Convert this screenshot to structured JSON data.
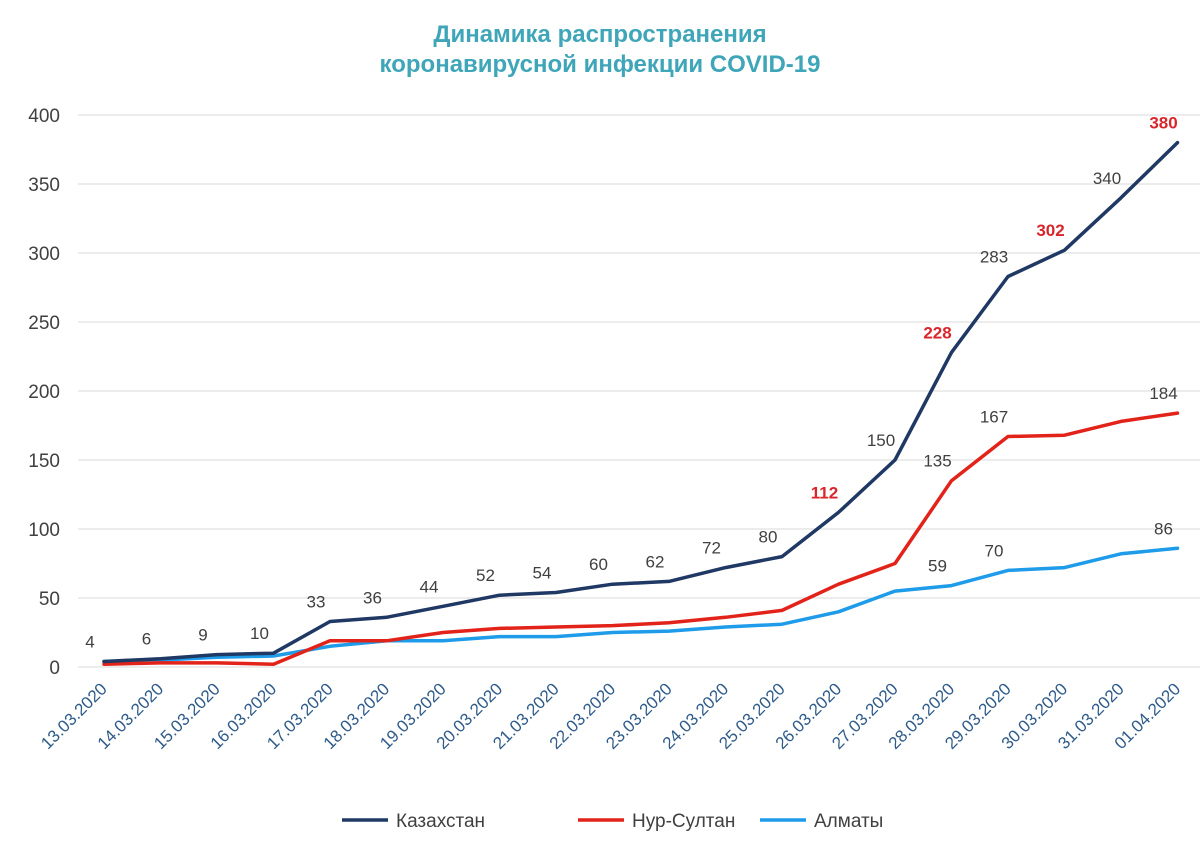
{
  "chart_data": {
    "type": "line",
    "title_line1": "Динамика распространения",
    "title_line2": "коронавирусной инфекции COVID-19",
    "xlabel": "",
    "ylabel": "",
    "ylim": [
      0,
      400
    ],
    "yticks": [
      "0",
      "50",
      "100",
      "150",
      "200",
      "250",
      "300",
      "350",
      "400"
    ],
    "grid": true,
    "legend_position": "bottom",
    "categories": [
      "13.03.2020",
      "14.03.2020",
      "15.03.2020",
      "16.03.2020",
      "17.03.2020",
      "18.03.2020",
      "19.03.2020",
      "20.03.2020",
      "21.03.2020",
      "22.03.2020",
      "23.03.2020",
      "24.03.2020",
      "25.03.2020",
      "26.03.2020",
      "27.03.2020",
      "28.03.2020",
      "29.03.2020",
      "30.03.2020",
      "31.03.2020",
      "01.04.2020"
    ],
    "series": [
      {
        "name": "Казахстан",
        "color": "#1f3864",
        "values": [
          4,
          6,
          9,
          10,
          33,
          36,
          44,
          52,
          54,
          60,
          62,
          72,
          80,
          112,
          150,
          228,
          283,
          302,
          340,
          380
        ]
      },
      {
        "name": "Нур-Султан",
        "color": "#e2231a",
        "values": [
          2,
          3,
          3,
          2,
          19,
          19,
          25,
          28,
          29,
          30,
          32,
          36,
          41,
          60,
          75,
          135,
          167,
          168,
          178,
          184
        ]
      },
      {
        "name": "Алматы",
        "color": "#1e9be9",
        "values": [
          4,
          5,
          7,
          8,
          15,
          19,
          19,
          22,
          22,
          25,
          26,
          29,
          31,
          40,
          55,
          59,
          70,
          72,
          82,
          86
        ]
      }
    ],
    "data_labels": [
      {
        "series": 0,
        "index": 0,
        "text": "4",
        "highlight": false
      },
      {
        "series": 0,
        "index": 1,
        "text": "6",
        "highlight": false
      },
      {
        "series": 0,
        "index": 2,
        "text": "9",
        "highlight": false
      },
      {
        "series": 0,
        "index": 3,
        "text": "10",
        "highlight": false
      },
      {
        "series": 0,
        "index": 4,
        "text": "33",
        "highlight": false
      },
      {
        "series": 0,
        "index": 5,
        "text": "36",
        "highlight": false
      },
      {
        "series": 0,
        "index": 6,
        "text": "44",
        "highlight": false
      },
      {
        "series": 0,
        "index": 7,
        "text": "52",
        "highlight": false
      },
      {
        "series": 0,
        "index": 8,
        "text": "54",
        "highlight": false
      },
      {
        "series": 0,
        "index": 9,
        "text": "60",
        "highlight": false
      },
      {
        "series": 0,
        "index": 10,
        "text": "62",
        "highlight": false
      },
      {
        "series": 0,
        "index": 11,
        "text": "72",
        "highlight": false
      },
      {
        "series": 0,
        "index": 12,
        "text": "80",
        "highlight": false
      },
      {
        "series": 0,
        "index": 13,
        "text": "112",
        "highlight": true
      },
      {
        "series": 0,
        "index": 14,
        "text": "150",
        "highlight": false
      },
      {
        "series": 0,
        "index": 15,
        "text": "228",
        "highlight": true
      },
      {
        "series": 0,
        "index": 16,
        "text": "283",
        "highlight": false
      },
      {
        "series": 0,
        "index": 17,
        "text": "302",
        "highlight": true
      },
      {
        "series": 0,
        "index": 18,
        "text": "340",
        "highlight": false
      },
      {
        "series": 0,
        "index": 19,
        "text": "380",
        "highlight": true
      },
      {
        "series": 1,
        "index": 15,
        "text": "135",
        "highlight": false
      },
      {
        "series": 1,
        "index": 16,
        "text": "167",
        "highlight": false
      },
      {
        "series": 1,
        "index": 19,
        "text": "184",
        "highlight": false
      },
      {
        "series": 2,
        "index": 15,
        "text": "59",
        "highlight": false
      },
      {
        "series": 2,
        "index": 16,
        "text": "70",
        "highlight": false
      },
      {
        "series": 2,
        "index": 19,
        "text": "86",
        "highlight": false
      }
    ],
    "highlight_color": "#d9262b"
  }
}
